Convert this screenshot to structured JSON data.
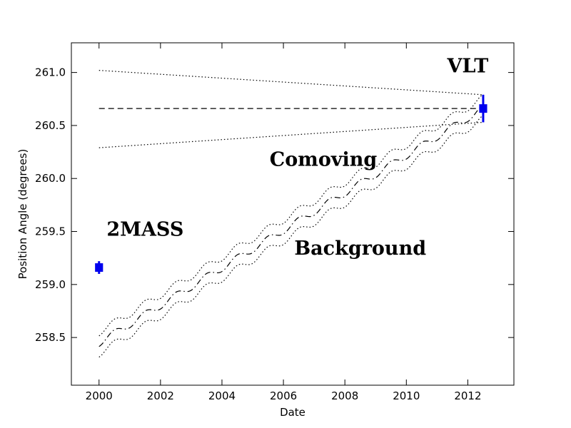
{
  "chart_data": {
    "type": "scatter",
    "title": "",
    "xlabel": "Date",
    "ylabel": "Position Angle (degrees)",
    "xlim": [
      1999.1,
      2013.5
    ],
    "ylim": [
      258.05,
      261.28
    ],
    "xticks": [
      "2000",
      "2002",
      "2004",
      "2006",
      "2008",
      "2010",
      "2012"
    ],
    "yticks": [
      "258.5",
      "259.0",
      "259.5",
      "260.0",
      "260.5",
      "261.0"
    ],
    "grid": false,
    "points": [
      {
        "name": "2MASS",
        "x": 2000.0,
        "y": 259.16,
        "yerr": 0.06,
        "xerr": 0.12
      },
      {
        "name": "VLT",
        "x": 2012.5,
        "y": 260.66,
        "yerr": 0.13,
        "xerr": 0.12
      }
    ],
    "comoving": {
      "x": [
        2000.0,
        2012.5
      ],
      "center": [
        260.66,
        260.66
      ],
      "upper": [
        261.02,
        260.79
      ],
      "lower": [
        260.29,
        260.53
      ]
    },
    "background": {
      "x_start": 2000.0,
      "x_end": 2012.5,
      "y_start": 258.45,
      "y_end": 260.66,
      "band_halfwidth": 0.1,
      "wiggle_amplitude": 0.035,
      "wiggle_period_years": 1.0
    },
    "annotations": [
      {
        "text": "VLT",
        "x": 2012.0,
        "y": 261.0
      },
      {
        "text": "Comoving",
        "x": 2007.3,
        "y": 260.12
      },
      {
        "text": "2MASS",
        "x": 2001.5,
        "y": 259.46
      },
      {
        "text": "Background",
        "x": 2008.5,
        "y": 259.28
      }
    ],
    "colors": {
      "points": "#0000ee",
      "lines": "#000000"
    }
  }
}
